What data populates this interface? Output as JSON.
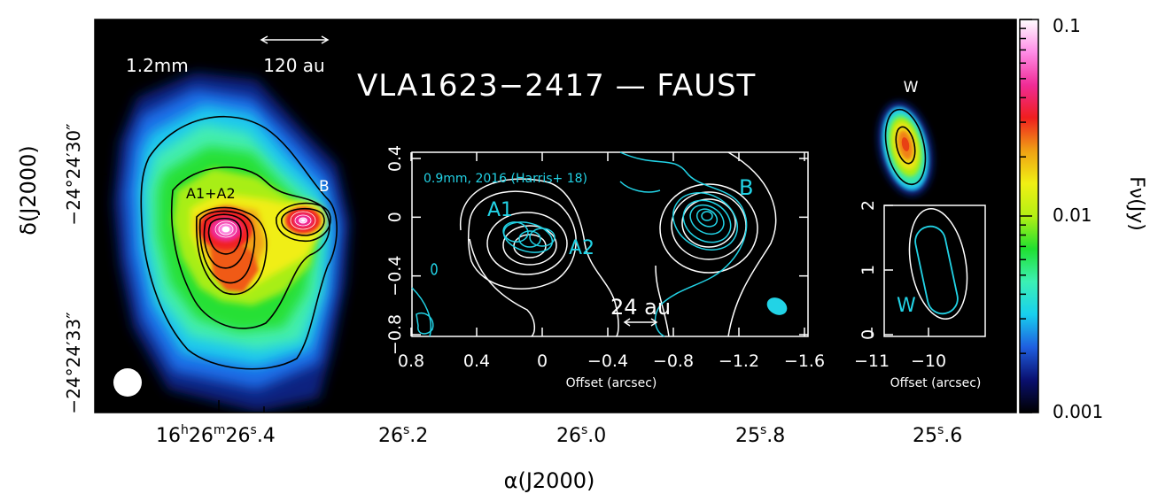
{
  "chart_data": [
    {
      "type": "heatmap",
      "title": "VLA1623−2417 — FAUST",
      "band_label": "1.2mm",
      "scalebar_label": "120 au",
      "xlabel": "α(J2000)",
      "ylabel": "δ(J2000)",
      "x_ticks": [
        "16h26m26.4s",
        "26.2s",
        "26.0s",
        "25.8s",
        "25.6s"
      ],
      "y_ticks": [
        "−24°24′30″",
        "−24°24′33″"
      ],
      "source_labels": [
        "A1+A2",
        "B",
        "W"
      ],
      "colorbar": {
        "label": "Fν(Jy)",
        "scale": "log",
        "range": [
          0.001,
          0.1
        ],
        "ticks": [
          "0.1",
          "0.01",
          "0.001"
        ],
        "colormap": [
          "#000000",
          "#0a1070",
          "#1f5fe0",
          "#18d0ee",
          "#3cf0b4",
          "#20e030",
          "#b4f014",
          "#f0f014",
          "#f0a014",
          "#f01e1e",
          "#f02c96",
          "#ff8ce6",
          "#ffffff"
        ]
      }
    },
    {
      "type": "heatmap",
      "panel": "inset-A-B",
      "annotation": "0.9mm, 2016 (Harris+ 18)",
      "xlabel": "Offset (arcsec)",
      "x_ticks": [
        0.8,
        0.4,
        0,
        -0.4,
        -0.8,
        -1.2,
        -1.6
      ],
      "y_ticks": [
        0.4,
        0,
        -0.4,
        -0.8
      ],
      "source_labels": [
        "A1",
        "A2",
        "B"
      ],
      "scalebar_label": "24 au",
      "contour_colors": {
        "1.2mm": "#ffffff",
        "0.9mm": "#22d3e6"
      }
    },
    {
      "type": "heatmap",
      "panel": "inset-W",
      "xlabel": "Offset (arcsec)",
      "x_ticks": [
        -10,
        -11
      ],
      "y_ticks": [
        0,
        1,
        2
      ],
      "source_labels": [
        "W"
      ]
    }
  ]
}
